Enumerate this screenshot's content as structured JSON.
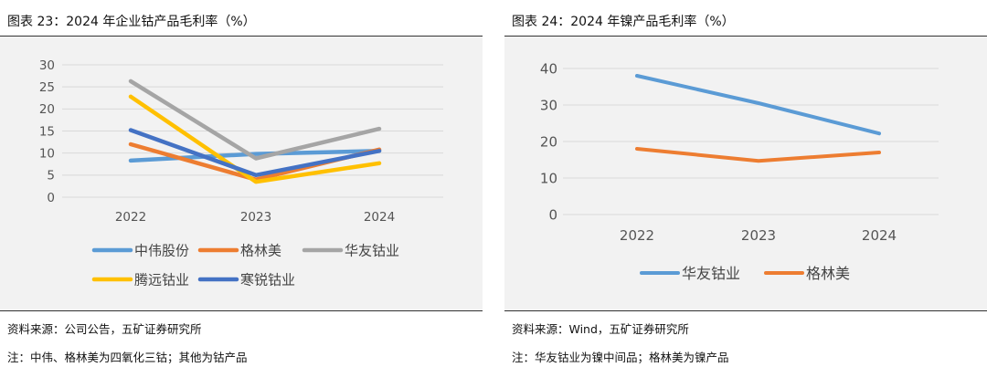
{
  "panels": [
    {
      "title": "图表 23：2024 年企业钴产品毛利率（%）",
      "source": "资料来源：公司公告，五矿证券研究所",
      "note": "注：中伟、格林美为四氧化三钴；其他为钴产品"
    },
    {
      "title": "图表 24：2024 年镍产品毛利率（%）",
      "source": "资料来源：Wind，五矿证券研究所",
      "note": "注：华友钴业为镍中间品；格林美为镍产品"
    }
  ],
  "chart_data": [
    {
      "type": "line",
      "title": "",
      "xlabel": "",
      "ylabel": "",
      "categories": [
        "2022",
        "2023",
        "2024"
      ],
      "ylim": [
        0,
        30
      ],
      "yticks": [
        0,
        5,
        10,
        15,
        20,
        25,
        30
      ],
      "grid": true,
      "legend": "bottom",
      "series": [
        {
          "name": "中伟股份",
          "color": "#5B9BD5",
          "values": [
            8.3,
            9.8,
            10.5
          ]
        },
        {
          "name": "格林美",
          "color": "#ED7D31",
          "values": [
            12.0,
            4.0,
            10.8
          ]
        },
        {
          "name": "华友钴业",
          "color": "#A5A5A5",
          "values": [
            26.3,
            8.8,
            15.5
          ]
        },
        {
          "name": "腾远钴业",
          "color": "#FFC000",
          "values": [
            22.8,
            3.5,
            7.7
          ]
        },
        {
          "name": "寒锐钴业",
          "color": "#4472C4",
          "values": [
            15.2,
            5.0,
            10.5
          ]
        }
      ]
    },
    {
      "type": "line",
      "title": "",
      "xlabel": "",
      "ylabel": "",
      "categories": [
        "2022",
        "2023",
        "2024"
      ],
      "ylim": [
        0,
        40
      ],
      "yticks": [
        0,
        10,
        20,
        30,
        40
      ],
      "grid": true,
      "legend": "bottom",
      "series": [
        {
          "name": "华友钴业",
          "color": "#5B9BD5",
          "values": [
            38.0,
            30.5,
            22.2
          ]
        },
        {
          "name": "格林美",
          "color": "#ED7D31",
          "values": [
            18.0,
            14.7,
            17.0
          ]
        }
      ]
    }
  ]
}
